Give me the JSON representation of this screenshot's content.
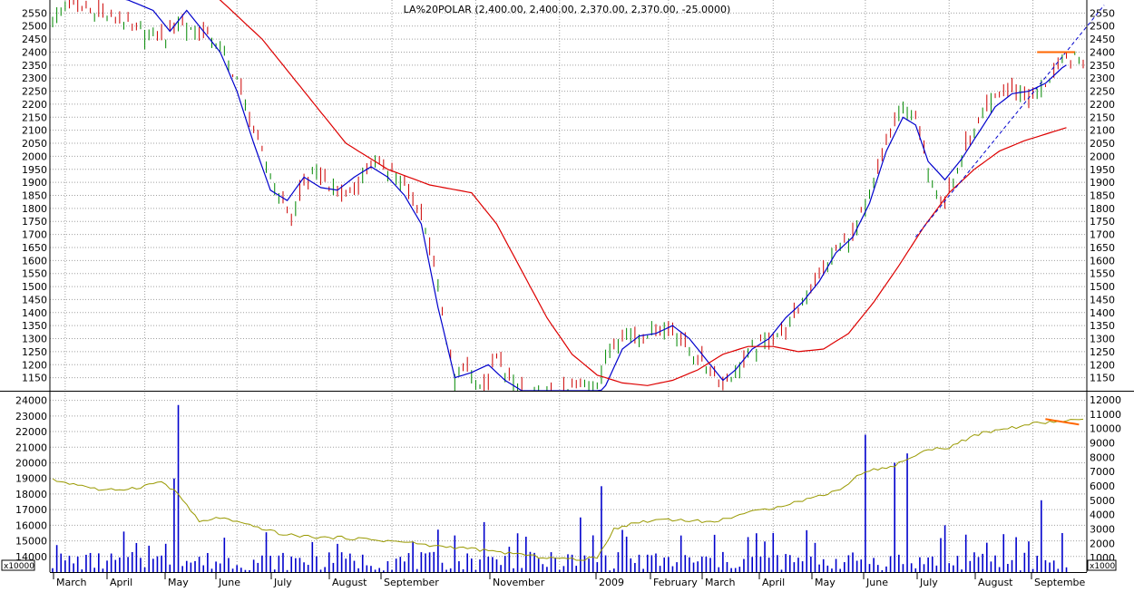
{
  "chart_data": [
    {
      "type": "candlestick",
      "title": "LA%20POLAR (2,400.00, 2,400.00, 2,370.00, 2,370.00, -25.0000)",
      "ylim": [
        1100,
        2600
      ],
      "left_ticks": [
        1150,
        1200,
        1250,
        1300,
        1350,
        1400,
        1450,
        1500,
        1550,
        1600,
        1650,
        1700,
        1750,
        1800,
        1850,
        1900,
        1950,
        2000,
        2050,
        2100,
        2150,
        2200,
        2250,
        2300,
        2350,
        2400,
        2450,
        2500,
        2550
      ],
      "right_ticks": [
        1150,
        1200,
        1250,
        1300,
        1350,
        1400,
        1450,
        1500,
        1550,
        1600,
        1650,
        1700,
        1750,
        1800,
        1850,
        1900,
        1950,
        2000,
        2050,
        2100,
        2150,
        2200,
        2250,
        2300,
        2350,
        2400,
        2450,
        2500,
        2550
      ],
      "grid": true,
      "price_anchors": [
        [
          0,
          2540
        ],
        [
          4,
          2580
        ],
        [
          10,
          2560
        ],
        [
          16,
          2520
        ],
        [
          22,
          2480
        ],
        [
          27,
          2460
        ],
        [
          30,
          2520
        ],
        [
          36,
          2470
        ],
        [
          40,
          2420
        ],
        [
          44,
          2300
        ],
        [
          49,
          2050
        ],
        [
          53,
          1880
        ],
        [
          57,
          1760
        ],
        [
          60,
          1900
        ],
        [
          64,
          1930
        ],
        [
          68,
          1850
        ],
        [
          72,
          1870
        ],
        [
          76,
          1970
        ],
        [
          80,
          1960
        ],
        [
          84,
          1880
        ],
        [
          88,
          1780
        ],
        [
          91,
          1600
        ],
        [
          94,
          1280
        ],
        [
          96,
          1140
        ],
        [
          99,
          1200
        ],
        [
          103,
          1100
        ],
        [
          106,
          1220
        ],
        [
          110,
          1130
        ],
        [
          114,
          1080
        ],
        [
          120,
          1090
        ],
        [
          125,
          1110
        ],
        [
          130,
          1130
        ],
        [
          133,
          1260
        ],
        [
          136,
          1330
        ],
        [
          140,
          1300
        ],
        [
          144,
          1340
        ],
        [
          148,
          1330
        ],
        [
          152,
          1260
        ],
        [
          156,
          1190
        ],
        [
          160,
          1130
        ],
        [
          163,
          1170
        ],
        [
          167,
          1260
        ],
        [
          171,
          1300
        ],
        [
          175,
          1330
        ],
        [
          179,
          1450
        ],
        [
          183,
          1540
        ],
        [
          187,
          1640
        ],
        [
          191,
          1690
        ],
        [
          195,
          1850
        ],
        [
          199,
          2050
        ],
        [
          203,
          2200
        ],
        [
          206,
          2140
        ],
        [
          209,
          1950
        ],
        [
          213,
          1820
        ],
        [
          217,
          2000
        ],
        [
          221,
          2120
        ],
        [
          225,
          2230
        ],
        [
          229,
          2260
        ],
        [
          233,
          2220
        ],
        [
          237,
          2280
        ],
        [
          241,
          2360
        ],
        [
          244,
          2380
        ],
        [
          246,
          2370
        ]
      ],
      "series": [
        {
          "name": "",
          "color": "#0000cc",
          "anchors": [
            [
              0,
              2700
            ],
            [
              6,
              2650
            ],
            [
              12,
              2620
            ],
            [
              18,
              2600
            ],
            [
              24,
              2560
            ],
            [
              28,
              2480
            ],
            [
              32,
              2560
            ],
            [
              36,
              2480
            ],
            [
              40,
              2400
            ],
            [
              44,
              2250
            ],
            [
              48,
              2050
            ],
            [
              52,
              1870
            ],
            [
              56,
              1830
            ],
            [
              60,
              1920
            ],
            [
              64,
              1880
            ],
            [
              68,
              1870
            ],
            [
              72,
              1920
            ],
            [
              76,
              1960
            ],
            [
              80,
              1920
            ],
            [
              84,
              1850
            ],
            [
              88,
              1740
            ],
            [
              92,
              1420
            ],
            [
              96,
              1150
            ],
            [
              100,
              1170
            ],
            [
              104,
              1200
            ],
            [
              108,
              1140
            ],
            [
              112,
              1100
            ],
            [
              118,
              1060
            ],
            [
              124,
              1080
            ],
            [
              128,
              1050
            ],
            [
              132,
              1120
            ],
            [
              136,
              1260
            ],
            [
              140,
              1310
            ],
            [
              144,
              1320
            ],
            [
              148,
              1350
            ],
            [
              152,
              1300
            ],
            [
              156,
              1220
            ],
            [
              160,
              1140
            ],
            [
              163,
              1180
            ],
            [
              167,
              1260
            ],
            [
              171,
              1300
            ],
            [
              175,
              1380
            ],
            [
              179,
              1440
            ],
            [
              183,
              1520
            ],
            [
              187,
              1630
            ],
            [
              191,
              1690
            ],
            [
              195,
              1820
            ],
            [
              199,
              2020
            ],
            [
              203,
              2150
            ],
            [
              206,
              2120
            ],
            [
              209,
              1980
            ],
            [
              213,
              1910
            ],
            [
              217,
              1990
            ],
            [
              221,
              2090
            ],
            [
              225,
              2190
            ],
            [
              229,
              2240
            ],
            [
              233,
              2250
            ],
            [
              237,
              2280
            ],
            [
              241,
              2340
            ],
            [
              244,
              2370
            ]
          ]
        },
        {
          "name": "",
          "color": "#dd0000",
          "anchors": [
            [
              0,
              2800
            ],
            [
              10,
              2780
            ],
            [
              20,
              2740
            ],
            [
              30,
              2680
            ],
            [
              40,
              2600
            ],
            [
              50,
              2450
            ],
            [
              60,
              2250
            ],
            [
              70,
              2050
            ],
            [
              80,
              1950
            ],
            [
              90,
              1890
            ],
            [
              100,
              1860
            ],
            [
              106,
              1740
            ],
            [
              112,
              1560
            ],
            [
              118,
              1380
            ],
            [
              124,
              1240
            ],
            [
              130,
              1160
            ],
            [
              136,
              1130
            ],
            [
              142,
              1120
            ],
            [
              148,
              1140
            ],
            [
              154,
              1180
            ],
            [
              160,
              1240
            ],
            [
              166,
              1270
            ],
            [
              172,
              1270
            ],
            [
              178,
              1250
            ],
            [
              184,
              1260
            ],
            [
              190,
              1320
            ],
            [
              196,
              1440
            ],
            [
              202,
              1580
            ],
            [
              208,
              1730
            ],
            [
              214,
              1860
            ],
            [
              220,
              1950
            ],
            [
              226,
              2020
            ],
            [
              232,
              2060
            ],
            [
              238,
              2090
            ],
            [
              244,
              2120
            ]
          ]
        }
      ],
      "annotations": [
        {
          "kind": "trendline",
          "color": "#0000cc",
          "style": "dashed",
          "from": [
            206,
            1690
          ],
          "to": [
            251,
            2580
          ]
        },
        {
          "kind": "resistance",
          "color": "#ff6600",
          "from": [
            235,
            2400
          ],
          "to": [
            244,
            2400
          ]
        }
      ]
    },
    {
      "type": "bar",
      "ylim": [
        13000,
        24500
      ],
      "left_ticks": [
        14000,
        15000,
        16000,
        17000,
        18000,
        19000,
        20000,
        21000,
        22000,
        23000,
        24000
      ],
      "right_ticks": [
        1000,
        2000,
        3000,
        4000,
        5000,
        6000,
        7000,
        8000,
        9000,
        10000,
        11000,
        12000
      ],
      "left_multiplier": "x10000",
      "right_multiplier": "x1000",
      "bar_color": "#0000cc",
      "volume_spikes": [
        [
          30,
          23700
        ],
        [
          29,
          19000
        ],
        [
          131,
          18500
        ],
        [
          136,
          15700
        ],
        [
          103,
          16200
        ],
        [
          126,
          16500
        ],
        [
          194,
          21800
        ],
        [
          204,
          20600
        ],
        [
          201,
          20000
        ],
        [
          213,
          16000
        ],
        [
          236,
          17600
        ]
      ],
      "series": [
        {
          "name": "",
          "color": "#999900",
          "anchors": [
            [
              0,
              18900
            ],
            [
              8,
              18500
            ],
            [
              12,
              18200
            ],
            [
              20,
              18400
            ],
            [
              26,
              18800
            ],
            [
              30,
              18000
            ],
            [
              35,
              16200
            ],
            [
              40,
              16500
            ],
            [
              45,
              16100
            ],
            [
              50,
              15800
            ],
            [
              55,
              15400
            ],
            [
              60,
              15300
            ],
            [
              65,
              15200
            ],
            [
              70,
              15200
            ],
            [
              75,
              15100
            ],
            [
              80,
              15000
            ],
            [
              85,
              14900
            ],
            [
              90,
              14700
            ],
            [
              95,
              14600
            ],
            [
              100,
              14500
            ],
            [
              105,
              14300
            ],
            [
              110,
              14200
            ],
            [
              115,
              14000
            ],
            [
              120,
              13900
            ],
            [
              125,
              13800
            ],
            [
              130,
              13900
            ],
            [
              134,
              15800
            ],
            [
              140,
              16200
            ],
            [
              146,
              16400
            ],
            [
              152,
              16300
            ],
            [
              158,
              16200
            ],
            [
              164,
              16700
            ],
            [
              170,
              17000
            ],
            [
              176,
              17400
            ],
            [
              182,
              17800
            ],
            [
              188,
              18300
            ],
            [
              194,
              19500
            ],
            [
              200,
              19700
            ],
            [
              206,
              20500
            ],
            [
              210,
              20900
            ],
            [
              214,
              21000
            ],
            [
              218,
              21500
            ],
            [
              222,
              21900
            ],
            [
              226,
              22100
            ],
            [
              230,
              22300
            ],
            [
              234,
              22500
            ],
            [
              238,
              22600
            ],
            [
              242,
              22700
            ],
            [
              246,
              22700
            ]
          ]
        },
        {
          "name": "",
          "color": "#ff6600",
          "anchors": [
            [
              237,
              22800
            ],
            [
              245,
              22450
            ]
          ]
        }
      ]
    }
  ],
  "x_labels": [
    "March",
    "April",
    "May",
    "June",
    "July",
    "August",
    "September",
    "November",
    "2009",
    "February",
    "March",
    "April",
    "May",
    "June",
    "July",
    "August",
    "Septembe"
  ],
  "colors": {
    "up": "#008800",
    "down": "#cc0000",
    "grid": "#a0a0a0",
    "panel_border": "#000000"
  }
}
